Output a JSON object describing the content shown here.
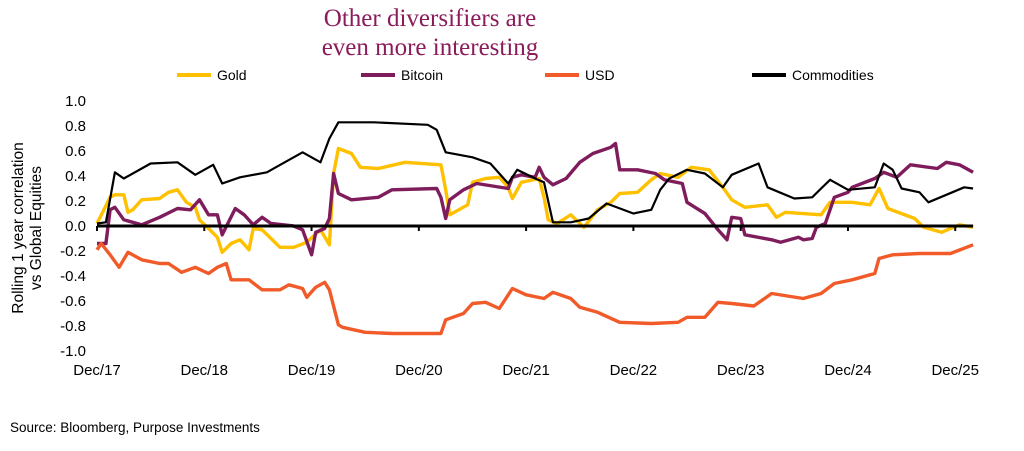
{
  "chart_data": {
    "type": "line",
    "title": "Other diversifiers are even more interesting",
    "title_lines": [
      "Other diversifiers are",
      "even more interesting"
    ],
    "ylabel_lines": [
      "Rolling 1 year correlation",
      "vs Global Equities"
    ],
    "xlabel": "",
    "ylim": [
      -1.0,
      1.0
    ],
    "yticks": [
      "1.0",
      "0.8",
      "0.6",
      "0.4",
      "0.2",
      "0.0",
      "-0.2",
      "-0.4",
      "-0.6",
      "-0.8",
      "-1.0"
    ],
    "xticks": [
      "Dec/17",
      "Dec/18",
      "Dec/19",
      "Dec/20",
      "Dec/21",
      "Dec/22",
      "Dec/23",
      "Dec/24",
      "Dec/25"
    ],
    "xtick_dates": [
      "2017-12-01",
      "2018-12-01",
      "2019-12-01",
      "2020-12-01",
      "2021-12-01",
      "2022-12-01",
      "2023-12-01",
      "2024-12-01",
      "2025-12-01"
    ],
    "grid": false,
    "legend_position": "top",
    "zero_line": true,
    "series": [
      {
        "name": "Gold",
        "color": "#FFC000",
        "points": [
          [
            "2017-12-01",
            0.02
          ],
          [
            "2018-01-15",
            0.23
          ],
          [
            "2018-02-01",
            0.25
          ],
          [
            "2018-03-01",
            0.25
          ],
          [
            "2018-03-15",
            0.11
          ],
          [
            "2018-04-01",
            0.13
          ],
          [
            "2018-05-01",
            0.21
          ],
          [
            "2018-07-01",
            0.22
          ],
          [
            "2018-08-01",
            0.27
          ],
          [
            "2018-09-01",
            0.29
          ],
          [
            "2018-10-01",
            0.19
          ],
          [
            "2018-11-01",
            0.15
          ],
          [
            "2018-11-15",
            0.05
          ],
          [
            "2018-12-15",
            -0.02
          ],
          [
            "2019-01-15",
            -0.09
          ],
          [
            "2019-02-01",
            -0.21
          ],
          [
            "2019-03-01",
            -0.14
          ],
          [
            "2019-04-01",
            -0.11
          ],
          [
            "2019-05-01",
            -0.19
          ],
          [
            "2019-05-15",
            -0.02
          ],
          [
            "2019-06-15",
            -0.03
          ],
          [
            "2019-07-15",
            -0.1
          ],
          [
            "2019-08-15",
            -0.17
          ],
          [
            "2019-10-01",
            -0.17
          ],
          [
            "2019-11-15",
            -0.13
          ],
          [
            "2020-01-01",
            -0.03
          ],
          [
            "2020-02-01",
            -0.15
          ],
          [
            "2020-02-15",
            0.42
          ],
          [
            "2020-03-01",
            0.62
          ],
          [
            "2020-04-15",
            0.58
          ],
          [
            "2020-05-15",
            0.47
          ],
          [
            "2020-07-15",
            0.46
          ],
          [
            "2020-10-15",
            0.51
          ],
          [
            "2021-02-15",
            0.49
          ],
          [
            "2021-03-01",
            0.29
          ],
          [
            "2021-03-15",
            0.09
          ],
          [
            "2021-05-15",
            0.17
          ],
          [
            "2021-06-01",
            0.35
          ],
          [
            "2021-07-15",
            0.38
          ],
          [
            "2021-09-01",
            0.39
          ],
          [
            "2021-10-01",
            0.31
          ],
          [
            "2021-10-15",
            0.22
          ],
          [
            "2021-11-15",
            0.35
          ],
          [
            "2022-01-15",
            0.38
          ],
          [
            "2022-02-01",
            0.23
          ],
          [
            "2022-02-15",
            0.05
          ],
          [
            "2022-03-15",
            0.02
          ],
          [
            "2022-05-01",
            0.09
          ],
          [
            "2022-06-15",
            -0.01
          ],
          [
            "2022-08-01",
            0.13
          ],
          [
            "2022-09-15",
            0.19
          ],
          [
            "2022-10-15",
            0.26
          ],
          [
            "2022-12-15",
            0.27
          ],
          [
            "2023-02-01",
            0.37
          ],
          [
            "2023-03-01",
            0.42
          ],
          [
            "2023-05-01",
            0.39
          ],
          [
            "2023-06-15",
            0.47
          ],
          [
            "2023-08-15",
            0.45
          ],
          [
            "2023-10-01",
            0.31
          ],
          [
            "2023-11-01",
            0.21
          ],
          [
            "2023-12-15",
            0.15
          ],
          [
            "2024-03-01",
            0.17
          ],
          [
            "2024-04-01",
            0.07
          ],
          [
            "2024-05-01",
            0.11
          ],
          [
            "2024-09-01",
            0.09
          ],
          [
            "2024-10-01",
            0.19
          ],
          [
            "2024-12-15",
            0.19
          ],
          [
            "2025-02-15",
            0.17
          ],
          [
            "2025-03-15",
            0.3
          ],
          [
            "2025-04-15",
            0.14
          ],
          [
            "2025-07-15",
            0.06
          ],
          [
            "2025-08-15",
            -0.01
          ],
          [
            "2025-10-15",
            -0.05
          ],
          [
            "2025-12-15",
            0.01
          ],
          [
            "2026-02-01",
            -0.01
          ]
        ]
      },
      {
        "name": "Bitcoin",
        "color": "#7F1D5C",
        "points": [
          [
            "2017-12-01",
            -0.14
          ],
          [
            "2018-01-01",
            -0.14
          ],
          [
            "2018-01-15",
            0.13
          ],
          [
            "2018-02-01",
            0.15
          ],
          [
            "2018-03-01",
            0.05
          ],
          [
            "2018-05-01",
            0.01
          ],
          [
            "2018-07-01",
            0.07
          ],
          [
            "2018-09-01",
            0.14
          ],
          [
            "2018-10-15",
            0.13
          ],
          [
            "2018-11-15",
            0.21
          ],
          [
            "2018-12-15",
            0.09
          ],
          [
            "2019-01-15",
            0.09
          ],
          [
            "2019-02-01",
            -0.07
          ],
          [
            "2019-03-15",
            0.14
          ],
          [
            "2019-04-15",
            0.09
          ],
          [
            "2019-05-15",
            0.01
          ],
          [
            "2019-06-15",
            0.07
          ],
          [
            "2019-07-15",
            0.02
          ],
          [
            "2019-10-01",
            0.0
          ],
          [
            "2019-11-01",
            -0.03
          ],
          [
            "2019-12-01",
            -0.23
          ],
          [
            "2019-12-15",
            -0.05
          ],
          [
            "2020-01-15",
            -0.02
          ],
          [
            "2020-02-01",
            0.06
          ],
          [
            "2020-02-15",
            0.42
          ],
          [
            "2020-03-01",
            0.26
          ],
          [
            "2020-04-15",
            0.21
          ],
          [
            "2020-07-15",
            0.23
          ],
          [
            "2020-09-01",
            0.29
          ],
          [
            "2021-02-01",
            0.3
          ],
          [
            "2021-02-15",
            0.23
          ],
          [
            "2021-03-01",
            0.06
          ],
          [
            "2021-03-15",
            0.21
          ],
          [
            "2021-05-01",
            0.29
          ],
          [
            "2021-06-15",
            0.34
          ],
          [
            "2021-10-01",
            0.3
          ],
          [
            "2021-10-15",
            0.39
          ],
          [
            "2021-11-15",
            0.41
          ],
          [
            "2022-01-01",
            0.39
          ],
          [
            "2022-01-15",
            0.47
          ],
          [
            "2022-02-01",
            0.39
          ],
          [
            "2022-03-01",
            0.33
          ],
          [
            "2022-04-15",
            0.38
          ],
          [
            "2022-06-01",
            0.51
          ],
          [
            "2022-07-15",
            0.58
          ],
          [
            "2022-09-15",
            0.63
          ],
          [
            "2022-10-01",
            0.66
          ],
          [
            "2022-10-15",
            0.45
          ],
          [
            "2022-12-15",
            0.45
          ],
          [
            "2023-02-15",
            0.42
          ],
          [
            "2023-03-15",
            0.37
          ],
          [
            "2023-05-15",
            0.34
          ],
          [
            "2023-06-01",
            0.19
          ],
          [
            "2023-08-01",
            0.1
          ],
          [
            "2023-09-15",
            -0.03
          ],
          [
            "2023-10-15",
            -0.11
          ],
          [
            "2023-11-01",
            0.07
          ],
          [
            "2023-12-01",
            0.06
          ],
          [
            "2023-12-15",
            -0.07
          ],
          [
            "2024-03-15",
            -0.11
          ],
          [
            "2024-04-15",
            -0.13
          ],
          [
            "2024-06-15",
            -0.09
          ],
          [
            "2024-07-01",
            -0.11
          ],
          [
            "2024-08-01",
            -0.1
          ],
          [
            "2024-08-15",
            -0.01
          ],
          [
            "2024-09-15",
            0.02
          ],
          [
            "2024-10-15",
            0.23
          ],
          [
            "2024-12-01",
            0.27
          ],
          [
            "2024-12-15",
            0.31
          ],
          [
            "2025-03-01",
            0.38
          ],
          [
            "2025-04-01",
            0.43
          ],
          [
            "2025-05-15",
            0.39
          ],
          [
            "2025-07-01",
            0.49
          ],
          [
            "2025-10-01",
            0.46
          ],
          [
            "2025-11-01",
            0.51
          ],
          [
            "2025-12-15",
            0.49
          ],
          [
            "2026-02-01",
            0.43
          ]
        ]
      },
      {
        "name": "USD",
        "color": "#F15A29",
        "points": [
          [
            "2017-12-01",
            -0.19
          ],
          [
            "2017-12-15",
            -0.14
          ],
          [
            "2018-01-15",
            -0.23
          ],
          [
            "2018-02-15",
            -0.33
          ],
          [
            "2018-03-15",
            -0.21
          ],
          [
            "2018-05-01",
            -0.27
          ],
          [
            "2018-07-01",
            -0.3
          ],
          [
            "2018-08-01",
            -0.3
          ],
          [
            "2018-09-15",
            -0.37
          ],
          [
            "2018-11-01",
            -0.33
          ],
          [
            "2018-12-15",
            -0.38
          ],
          [
            "2019-01-15",
            -0.33
          ],
          [
            "2019-02-15",
            -0.3
          ],
          [
            "2019-03-01",
            -0.43
          ],
          [
            "2019-05-01",
            -0.43
          ],
          [
            "2019-06-15",
            -0.51
          ],
          [
            "2019-08-15",
            -0.51
          ],
          [
            "2019-09-15",
            -0.47
          ],
          [
            "2019-11-01",
            -0.5
          ],
          [
            "2019-11-15",
            -0.57
          ],
          [
            "2019-12-15",
            -0.49
          ],
          [
            "2020-01-15",
            -0.45
          ],
          [
            "2020-02-01",
            -0.51
          ],
          [
            "2020-03-01",
            -0.79
          ],
          [
            "2020-03-15",
            -0.81
          ],
          [
            "2020-06-01",
            -0.85
          ],
          [
            "2020-09-01",
            -0.86
          ],
          [
            "2021-02-15",
            -0.86
          ],
          [
            "2021-03-01",
            -0.75
          ],
          [
            "2021-05-01",
            -0.7
          ],
          [
            "2021-06-01",
            -0.62
          ],
          [
            "2021-07-15",
            -0.61
          ],
          [
            "2021-09-01",
            -0.66
          ],
          [
            "2021-10-15",
            -0.5
          ],
          [
            "2021-12-01",
            -0.55
          ],
          [
            "2022-02-01",
            -0.58
          ],
          [
            "2022-03-01",
            -0.53
          ],
          [
            "2022-05-01",
            -0.58
          ],
          [
            "2022-06-01",
            -0.65
          ],
          [
            "2022-08-01",
            -0.69
          ],
          [
            "2022-10-15",
            -0.77
          ],
          [
            "2023-02-01",
            -0.78
          ],
          [
            "2023-05-01",
            -0.77
          ],
          [
            "2023-06-01",
            -0.73
          ],
          [
            "2023-08-01",
            -0.73
          ],
          [
            "2023-09-15",
            -0.61
          ],
          [
            "2023-11-01",
            -0.62
          ],
          [
            "2024-01-15",
            -0.64
          ],
          [
            "2024-03-15",
            -0.54
          ],
          [
            "2024-07-01",
            -0.58
          ],
          [
            "2024-09-01",
            -0.54
          ],
          [
            "2024-10-15",
            -0.46
          ],
          [
            "2024-12-15",
            -0.43
          ],
          [
            "2025-03-01",
            -0.38
          ],
          [
            "2025-03-15",
            -0.26
          ],
          [
            "2025-05-01",
            -0.23
          ],
          [
            "2025-08-01",
            -0.22
          ],
          [
            "2025-11-15",
            -0.22
          ],
          [
            "2026-02-01",
            -0.15
          ]
        ]
      },
      {
        "name": "Commodities",
        "color": "#000000",
        "points": [
          [
            "2017-12-01",
            0.02
          ],
          [
            "2018-01-01",
            0.03
          ],
          [
            "2018-02-01",
            0.43
          ],
          [
            "2018-03-01",
            0.38
          ],
          [
            "2018-05-01",
            0.46
          ],
          [
            "2018-06-01",
            0.5
          ],
          [
            "2018-09-01",
            0.51
          ],
          [
            "2018-11-01",
            0.41
          ],
          [
            "2019-01-01",
            0.49
          ],
          [
            "2019-02-01",
            0.34
          ],
          [
            "2019-04-01",
            0.39
          ],
          [
            "2019-07-01",
            0.43
          ],
          [
            "2019-09-01",
            0.51
          ],
          [
            "2019-11-01",
            0.59
          ],
          [
            "2020-01-01",
            0.51
          ],
          [
            "2020-02-01",
            0.7
          ],
          [
            "2020-03-01",
            0.83
          ],
          [
            "2020-07-01",
            0.83
          ],
          [
            "2021-01-01",
            0.81
          ],
          [
            "2021-02-01",
            0.77
          ],
          [
            "2021-03-01",
            0.59
          ],
          [
            "2021-06-01",
            0.55
          ],
          [
            "2021-08-01",
            0.5
          ],
          [
            "2021-10-01",
            0.34
          ],
          [
            "2021-11-01",
            0.45
          ],
          [
            "2022-01-01",
            0.38
          ],
          [
            "2022-02-01",
            0.35
          ],
          [
            "2022-03-01",
            0.03
          ],
          [
            "2022-05-01",
            0.03
          ],
          [
            "2022-07-01",
            0.06
          ],
          [
            "2022-09-01",
            0.18
          ],
          [
            "2022-12-01",
            0.1
          ],
          [
            "2023-02-01",
            0.13
          ],
          [
            "2023-03-01",
            0.29
          ],
          [
            "2023-04-01",
            0.38
          ],
          [
            "2023-06-01",
            0.45
          ],
          [
            "2023-08-01",
            0.42
          ],
          [
            "2023-10-01",
            0.31
          ],
          [
            "2023-11-01",
            0.41
          ],
          [
            "2024-02-01",
            0.5
          ],
          [
            "2024-03-01",
            0.31
          ],
          [
            "2024-06-01",
            0.22
          ],
          [
            "2024-08-01",
            0.23
          ],
          [
            "2024-09-01",
            0.3
          ],
          [
            "2024-10-01",
            0.37
          ],
          [
            "2024-12-01",
            0.29
          ],
          [
            "2025-03-01",
            0.31
          ],
          [
            "2025-04-01",
            0.5
          ],
          [
            "2025-05-01",
            0.45
          ],
          [
            "2025-06-01",
            0.3
          ],
          [
            "2025-08-01",
            0.27
          ],
          [
            "2025-09-01",
            0.19
          ],
          [
            "2025-11-01",
            0.25
          ],
          [
            "2026-01-01",
            0.31
          ],
          [
            "2026-02-01",
            0.3
          ]
        ]
      }
    ]
  },
  "source": "Source: Bloomberg, Purpose Investments"
}
